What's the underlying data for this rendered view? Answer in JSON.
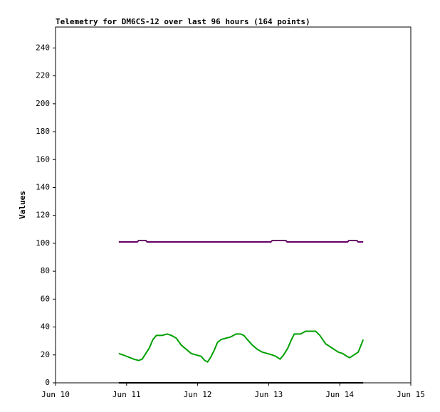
{
  "chart_data": {
    "type": "line",
    "title": "Telemetry for DM6CS-12 over last 96 hours (164 points)",
    "y_label": "Values",
    "xlim": [
      0,
      5
    ],
    "xticks": [
      {
        "value": 0,
        "label": "Jun 10"
      },
      {
        "value": 1,
        "label": "Jun 11"
      },
      {
        "value": 2,
        "label": "Jun 12"
      },
      {
        "value": 3,
        "label": "Jun 13"
      },
      {
        "value": 4,
        "label": "Jun 14"
      },
      {
        "value": 5,
        "label": "Jun 15"
      }
    ],
    "ylim": [
      0,
      255
    ],
    "yticks": [
      0,
      20,
      40,
      60,
      80,
      100,
      120,
      140,
      160,
      180,
      200,
      220,
      240
    ],
    "series": [
      {
        "color": "#660066",
        "x": [
          0.89,
          1.15,
          1.17,
          1.27,
          1.29,
          3.03,
          3.05,
          3.24,
          3.26,
          4.11,
          4.13,
          4.24,
          4.26,
          4.33
        ],
        "values": [
          101,
          101,
          102,
          102,
          101,
          101,
          102,
          102,
          101,
          101,
          102,
          102,
          101,
          101
        ]
      },
      {
        "color": "#00a000",
        "x": [
          0.89,
          0.95,
          1.0,
          1.05,
          1.1,
          1.17,
          1.22,
          1.27,
          1.32,
          1.37,
          1.42,
          1.5,
          1.57,
          1.63,
          1.7,
          1.77,
          1.84,
          1.91,
          1.98,
          2.05,
          2.1,
          2.14,
          2.18,
          2.23,
          2.28,
          2.33,
          2.4,
          2.47,
          2.54,
          2.6,
          2.65,
          2.7,
          2.77,
          2.84,
          2.91,
          2.98,
          3.05,
          3.1,
          3.16,
          3.21,
          3.27,
          3.32,
          3.36,
          3.45,
          3.52,
          3.6,
          3.66,
          3.72,
          3.8,
          3.86,
          3.92,
          3.98,
          4.04,
          4.1,
          4.14,
          4.2,
          4.26,
          4.3,
          4.33
        ],
        "values": [
          21,
          20,
          19,
          18,
          17,
          16,
          17,
          21,
          25,
          31,
          34,
          34,
          35,
          34,
          32,
          27,
          24,
          21,
          20,
          19,
          16,
          15,
          18,
          23,
          29,
          31,
          32,
          33,
          35,
          35,
          34,
          31,
          27,
          24,
          22,
          21,
          20,
          19,
          17,
          20,
          25,
          31,
          35,
          35,
          37,
          37,
          37,
          34,
          28,
          26,
          24,
          22,
          21,
          19,
          18,
          20,
          22,
          27,
          31
        ]
      },
      {
        "color": "#000000",
        "x": [
          0.89,
          4.33
        ],
        "values": [
          0,
          0
        ]
      }
    ]
  }
}
